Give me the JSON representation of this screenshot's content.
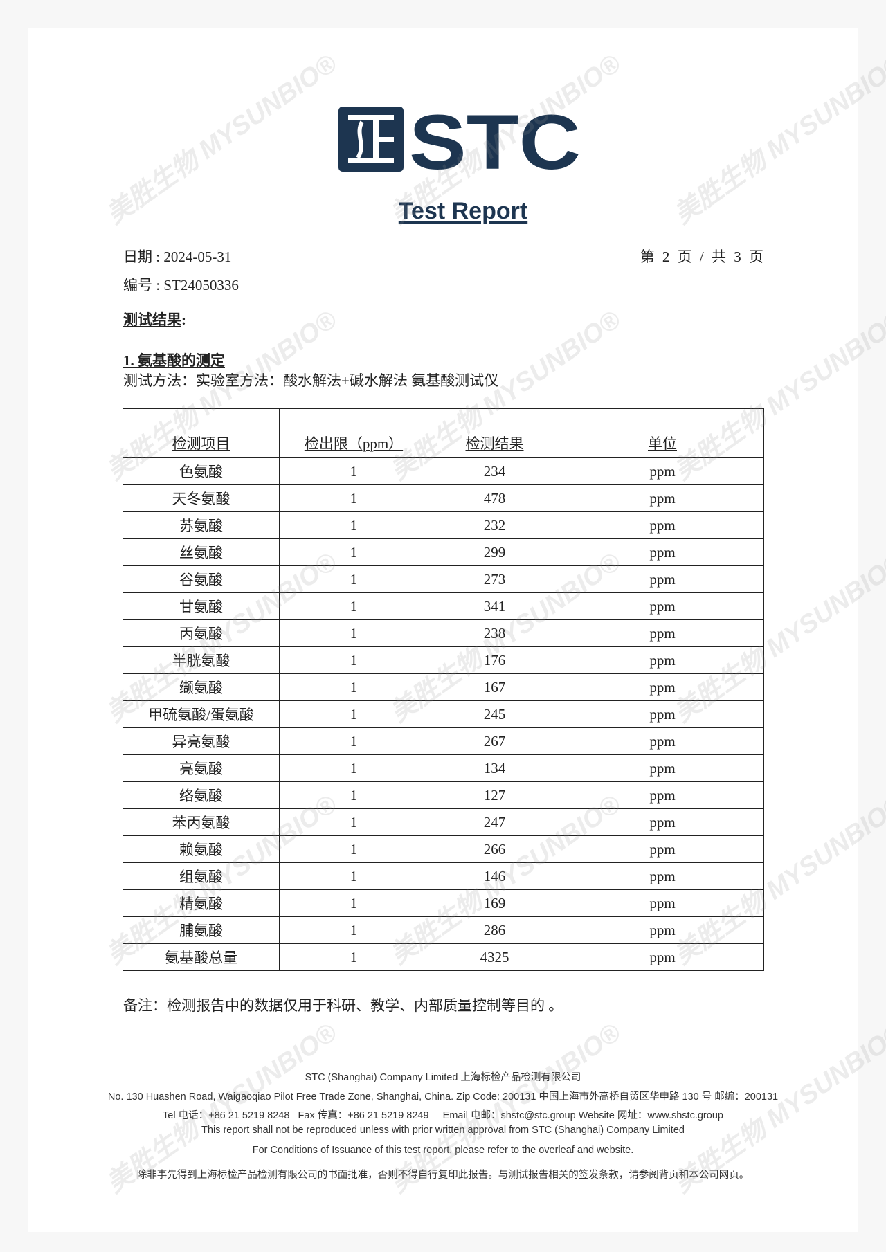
{
  "header": {
    "logo_text": "STC",
    "title": "Test Report",
    "date_label": "日期 : 2024-05-31",
    "report_no_label": "编号 : ST24050336",
    "page_indicator": "第 2 页 / 共 3 页"
  },
  "section": {
    "heading": "测试结果",
    "heading_colon": ":",
    "subheading": "1. 氨基酸的测定",
    "method": "测试方法：实验室方法：酸水解法+碱水解法 氨基酸测试仪"
  },
  "table": {
    "headers": [
      "检测项目",
      "检出限（ppm）",
      "检测结果",
      "单位"
    ],
    "rows": [
      [
        "色氨酸",
        "1",
        "234",
        "ppm"
      ],
      [
        "天冬氨酸",
        "1",
        "478",
        "ppm"
      ],
      [
        "苏氨酸",
        "1",
        "232",
        "ppm"
      ],
      [
        "丝氨酸",
        "1",
        "299",
        "ppm"
      ],
      [
        "谷氨酸",
        "1",
        "273",
        "ppm"
      ],
      [
        "甘氨酸",
        "1",
        "341",
        "ppm"
      ],
      [
        "丙氨酸",
        "1",
        "238",
        "ppm"
      ],
      [
        "半胱氨酸",
        "1",
        "176",
        "ppm"
      ],
      [
        "缬氨酸",
        "1",
        "167",
        "ppm"
      ],
      [
        "甲硫氨酸/蛋氨酸",
        "1",
        "245",
        "ppm"
      ],
      [
        "异亮氨酸",
        "1",
        "267",
        "ppm"
      ],
      [
        "亮氨酸",
        "1",
        "134",
        "ppm"
      ],
      [
        "络氨酸",
        "1",
        "127",
        "ppm"
      ],
      [
        "苯丙氨酸",
        "1",
        "247",
        "ppm"
      ],
      [
        "赖氨酸",
        "1",
        "266",
        "ppm"
      ],
      [
        "组氨酸",
        "1",
        "146",
        "ppm"
      ],
      [
        "精氨酸",
        "1",
        "169",
        "ppm"
      ],
      [
        "脯氨酸",
        "1",
        "286",
        "ppm"
      ],
      [
        "氨基酸总量",
        "1",
        "4325",
        "ppm"
      ]
    ]
  },
  "remark": "备注：检测报告中的数据仅用于科研、教学、内部质量控制等目的 。",
  "footer": {
    "line1": "STC (Shanghai) Company Limited 上海标检产品检测有限公司",
    "line2": "No. 130 Huashen Road, Waigaoqiao Pilot Free Trade Zone, Shanghai, China. Zip Code: 200131 中国上海市外高桥自贸区华申路 130 号 邮编：200131",
    "line3": "Tel 电话：+86 21 5219 8248   Fax 传真：+86 21 5219 8249     Email 电邮：shstc@stc.group Website 网址：www.shstc.group",
    "line4": "This report shall not be reproduced unless with prior written approval from STC (Shanghai) Company Limited",
    "line5": "For Conditions of Issuance of this test report, please refer to the overleaf and website.",
    "line6": "除非事先得到上海标检产品检测有限公司的书面批准，否则不得自行复印此报告。与测试报告相关的签发条款，请参阅背页和本公司网页。"
  },
  "watermark": {
    "text": "美胜生物 MYSUNBIO®"
  },
  "colors": {
    "brand": "#1d3550"
  }
}
